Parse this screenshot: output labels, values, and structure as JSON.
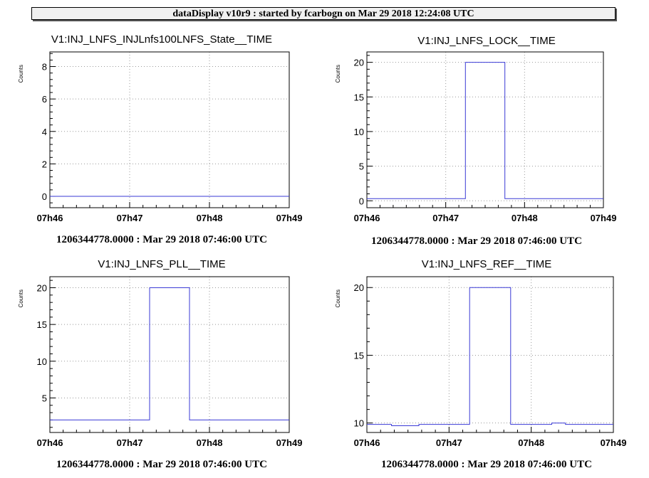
{
  "header": {
    "title": "dataDisplay v10r9 : started by fcarbogn on Mar 29 2018 12:24:08 UTC"
  },
  "chart_data": [
    {
      "type": "line",
      "title": "V1:INJ_LNFS_INJLnfs100LNFS_State__TIME",
      "ylabel": "Counts",
      "xlabel": "",
      "footer": "1206344778.0000 : Mar 29 2018 07:46:00 UTC",
      "x_ticks": [
        "07h46",
        "07h47",
        "07h48",
        "07h49"
      ],
      "xlim": [
        0,
        180
      ],
      "ylim": [
        -0.7,
        8.9
      ],
      "y_ticks": [
        0,
        2,
        4,
        6,
        8
      ],
      "grid": true,
      "series": [
        {
          "x": [
            0,
            180
          ],
          "y": [
            0,
            0
          ]
        }
      ]
    },
    {
      "type": "line",
      "title": "V1:INJ_LNFS_LOCK__TIME",
      "ylabel": "Counts",
      "xlabel": "",
      "footer": "1206344778.0000 : Mar 29 2018 07:46:00 UTC",
      "x_ticks": [
        "07h46",
        "07h47",
        "07h48",
        "07h49"
      ],
      "xlim": [
        0,
        180
      ],
      "ylim": [
        -1,
        21.5
      ],
      "y_ticks": [
        0,
        5,
        10,
        15,
        20
      ],
      "grid": true,
      "series": [
        {
          "x": [
            0,
            75,
            75,
            105,
            105,
            180
          ],
          "y": [
            0.3,
            0.3,
            20,
            20,
            0.3,
            0.3
          ]
        }
      ]
    },
    {
      "type": "line",
      "title": "V1:INJ_LNFS_PLL__TIME",
      "ylabel": "Counts",
      "xlabel": "",
      "footer": "1206344778.0000 : Mar 29 2018 07:46:00 UTC",
      "x_ticks": [
        "07h46",
        "07h47",
        "07h48",
        "07h49"
      ],
      "xlim": [
        0,
        180
      ],
      "ylim": [
        0.3,
        21.5
      ],
      "y_ticks": [
        5,
        10,
        15,
        20
      ],
      "grid": true,
      "series": [
        {
          "x": [
            0,
            75,
            75,
            105,
            105,
            180
          ],
          "y": [
            2,
            2,
            20,
            20,
            2,
            2
          ]
        }
      ]
    },
    {
      "type": "line",
      "title": "V1:INJ_LNFS_REF__TIME",
      "ylabel": "Counts",
      "xlabel": "",
      "footer": "1206344778.0000 : Mar 29 2018 07:46:00 UTC",
      "x_ticks": [
        "07h46",
        "07h47",
        "07h48",
        "07h49"
      ],
      "xlim": [
        0,
        180
      ],
      "ylim": [
        9.3,
        20.8
      ],
      "y_ticks": [
        10,
        15,
        20
      ],
      "grid": true,
      "series": [
        {
          "x": [
            0,
            18,
            18,
            38,
            38,
            75,
            75,
            105,
            105,
            135,
            135,
            145,
            145,
            180
          ],
          "y": [
            9.9,
            9.9,
            9.8,
            9.8,
            9.9,
            9.9,
            20,
            20,
            9.9,
            9.9,
            10,
            10,
            9.9,
            9.9
          ]
        }
      ]
    }
  ]
}
